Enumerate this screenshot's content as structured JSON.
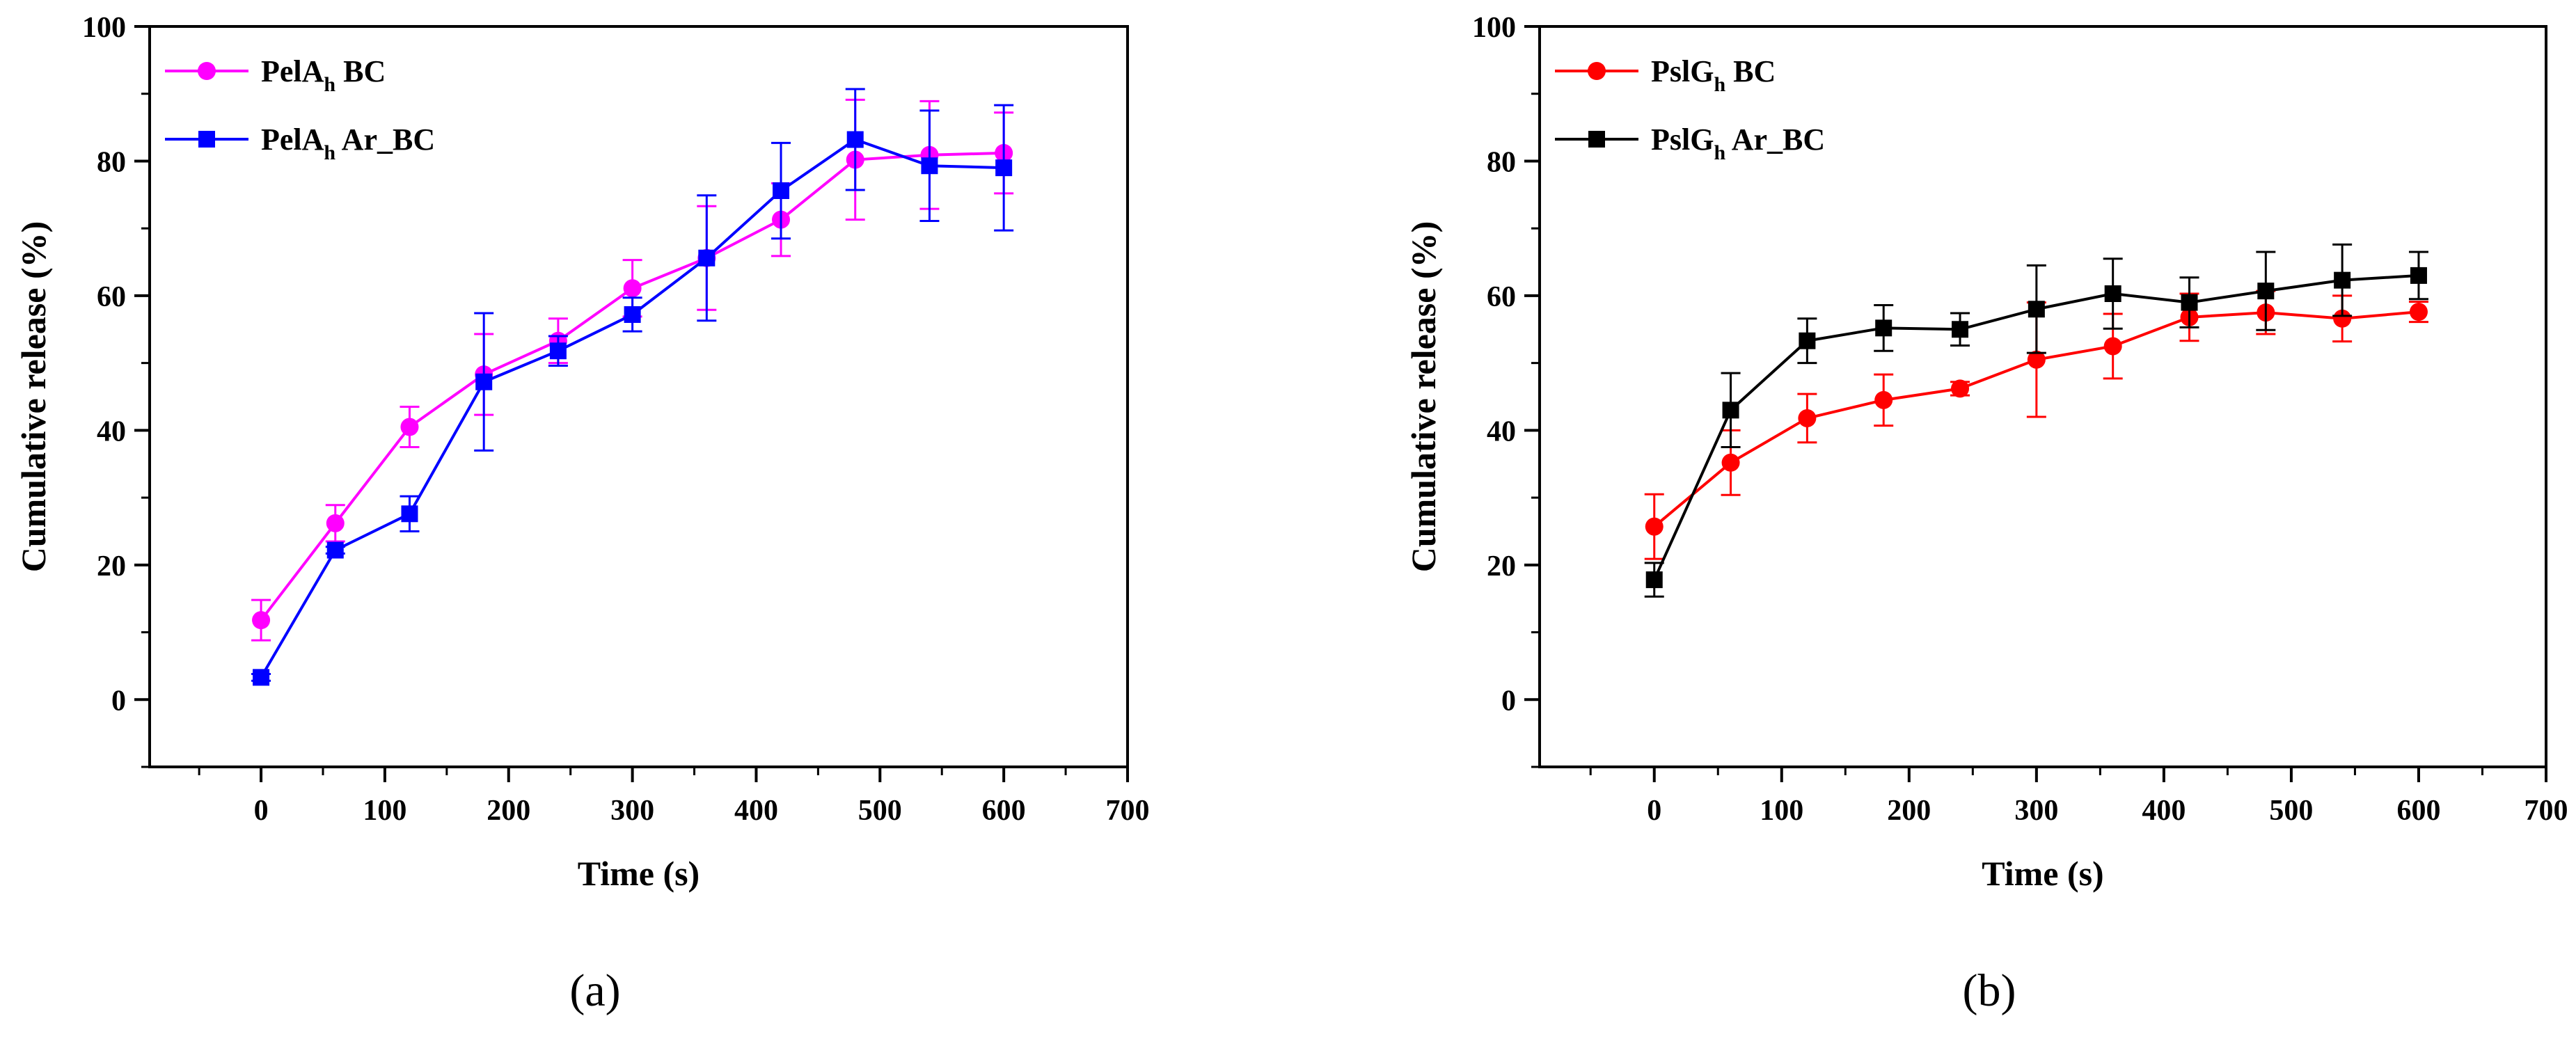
{
  "chart_data": [
    {
      "panel_label": "(a)",
      "type": "line",
      "xlabel": "Time (s)",
      "ylabel": "Cumulative release (%)",
      "xlim": [
        -90,
        700
      ],
      "ylim": [
        -10,
        100
      ],
      "xticks": [
        0,
        100,
        200,
        300,
        400,
        500,
        600,
        700
      ],
      "yticks": [
        0,
        20,
        40,
        60,
        80,
        100
      ],
      "x_tick_labels": [
        "0",
        "100",
        "200",
        "300",
        "400",
        "500",
        "600",
        "700"
      ],
      "y_tick_labels": [
        "0",
        "20",
        "40",
        "60",
        "80",
        "100"
      ],
      "legend_position": "top-left",
      "series": [
        {
          "name": "PelAh BC",
          "label_main": "PelA",
          "label_sub": "h",
          "label_rest": " BC",
          "color": "#ff00ff",
          "marker": "circle",
          "x": [
            0,
            60,
            120,
            180,
            240,
            300,
            360,
            420,
            480,
            540,
            600
          ],
          "y": [
            11.8,
            26.2,
            40.5,
            48.3,
            53.3,
            61.1,
            65.6,
            71.3,
            80.2,
            80.9,
            81.2
          ],
          "err": [
            3.0,
            2.7,
            3.0,
            6.0,
            3.3,
            4.2,
            7.7,
            5.4,
            8.9,
            8.0,
            6.0
          ]
        },
        {
          "name": "PelAh Ar_BC",
          "label_main": "PelA",
          "label_sub": "h",
          "label_rest": " Ar_BC",
          "color": "#0000ff",
          "marker": "square",
          "x": [
            0,
            60,
            120,
            180,
            240,
            300,
            360,
            420,
            480,
            540,
            600
          ],
          "y": [
            3.3,
            22.2,
            27.6,
            47.2,
            51.8,
            57.2,
            65.6,
            75.6,
            83.2,
            79.3,
            79.0
          ],
          "err": [
            0.5,
            0.5,
            2.6,
            10.2,
            2.2,
            2.5,
            9.3,
            7.1,
            7.5,
            8.2,
            9.3
          ]
        }
      ]
    },
    {
      "panel_label": "(b)",
      "type": "line",
      "xlabel": "Time (s)",
      "ylabel": "Cumulative release (%)",
      "xlim": [
        -90,
        700
      ],
      "ylim": [
        -10,
        100
      ],
      "xticks": [
        0,
        100,
        200,
        300,
        400,
        500,
        600,
        700
      ],
      "yticks": [
        0,
        20,
        40,
        60,
        80,
        100
      ],
      "x_tick_labels": [
        "0",
        "100",
        "200",
        "300",
        "400",
        "500",
        "600",
        "700"
      ],
      "y_tick_labels": [
        "0",
        "20",
        "40",
        "60",
        "80",
        "100"
      ],
      "legend_position": "top-left",
      "series": [
        {
          "name": "PslGh BC",
          "label_main": "PslG",
          "label_sub": "h",
          "label_rest": " BC",
          "color": "#ff0000",
          "marker": "circle",
          "x": [
            0,
            60,
            120,
            180,
            240,
            300,
            360,
            420,
            480,
            540,
            600
          ],
          "y": [
            25.7,
            35.2,
            41.8,
            44.5,
            46.2,
            50.5,
            52.5,
            56.8,
            57.5,
            56.6,
            57.6
          ],
          "err": [
            4.8,
            4.8,
            3.6,
            3.8,
            1.0,
            8.5,
            4.8,
            3.5,
            3.2,
            3.4,
            1.5
          ]
        },
        {
          "name": "PslGh Ar_BC",
          "label_main": "PslG",
          "label_sub": "h",
          "label_rest": " Ar_BC",
          "color": "#000000",
          "marker": "square",
          "x": [
            0,
            60,
            120,
            180,
            240,
            300,
            360,
            420,
            480,
            540,
            600
          ],
          "y": [
            17.8,
            43.0,
            53.3,
            55.2,
            55.0,
            58.0,
            60.3,
            59.0,
            60.7,
            62.3,
            63.0
          ],
          "err": [
            2.5,
            5.5,
            3.3,
            3.4,
            2.4,
            6.5,
            5.2,
            3.7,
            5.8,
            5.3,
            3.5
          ]
        }
      ]
    }
  ]
}
